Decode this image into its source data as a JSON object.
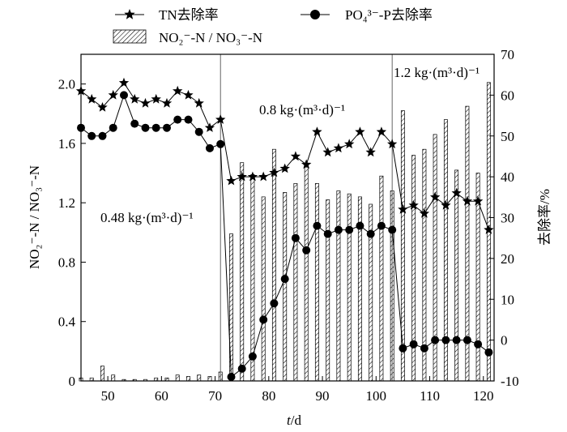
{
  "chart_data": {
    "type": "bar",
    "combo": "bar + line (dual y-axis)",
    "xlabel_italic": "t",
    "xlabel_rest": "/d",
    "ylabel_left": "NO₂⁻-N / NO₃⁻-N",
    "ylabel_right": "去除率/%",
    "xlim": [
      45,
      122
    ],
    "ylim_left": [
      0,
      2.2
    ],
    "ylim_right": [
      -10,
      70
    ],
    "x_ticks": [
      50,
      60,
      70,
      80,
      90,
      100,
      110,
      120
    ],
    "y_left_ticks": [
      "0",
      "0.4",
      "0.8",
      "1.2",
      "1.6",
      "2.0"
    ],
    "y_right_ticks": [
      "-10",
      "0",
      "10",
      "20",
      "30",
      "40",
      "50",
      "60",
      "70"
    ],
    "grid": false,
    "legend_position": "top",
    "legend": {
      "tn_label": "TN去除率",
      "po4_label": "PO₄³⁻-P去除率",
      "bar_label": "NO₂⁻-N / NO₃⁻-N"
    },
    "phase_lines_x": [
      71,
      103
    ],
    "annotations": {
      "phase1": "0.48 kg·(m³·d)⁻¹",
      "phase2": "0.8 kg·(m³·d)⁻¹",
      "phase3": "1.2 kg·(m³·d)⁻¹"
    },
    "bars": {
      "name": "NO₂⁻-N / NO₃⁻-N",
      "axis": "left",
      "x": [
        45,
        47,
        49,
        51,
        53,
        55,
        57,
        59,
        61,
        63,
        65,
        67,
        69,
        71,
        73,
        75,
        77,
        79,
        81,
        83,
        85,
        87,
        89,
        91,
        93,
        95,
        97,
        99,
        101,
        103,
        105,
        107,
        109,
        111,
        113,
        115,
        117,
        119,
        121
      ],
      "values": [
        0.02,
        0.02,
        0.1,
        0.04,
        0.01,
        0.01,
        0.01,
        0.02,
        0.02,
        0.04,
        0.03,
        0.04,
        0.03,
        0.06,
        0.99,
        1.47,
        1.39,
        1.24,
        1.56,
        1.27,
        1.33,
        1.44,
        1.33,
        1.22,
        1.28,
        1.26,
        1.24,
        1.19,
        1.38,
        1.28,
        1.82,
        1.52,
        1.56,
        1.66,
        1.76,
        1.42,
        1.85,
        1.4,
        2.01
      ]
    },
    "series": [
      {
        "name": "TN去除率",
        "axis": "right",
        "marker": "star",
        "x": [
          45,
          47,
          49,
          51,
          53,
          55,
          57,
          59,
          61,
          63,
          65,
          67,
          69,
          71,
          73,
          75,
          77,
          79,
          81,
          83,
          85,
          87,
          89,
          91,
          93,
          95,
          97,
          99,
          101,
          103,
          105,
          107,
          109,
          111,
          113,
          115,
          117,
          119,
          121
        ],
        "values": [
          61,
          59,
          57,
          60,
          63,
          59,
          58,
          59,
          58,
          61,
          60,
          58,
          52,
          54,
          39,
          40,
          40,
          40,
          41,
          42,
          45,
          43,
          51,
          46,
          47,
          48,
          51,
          46,
          51,
          48,
          32,
          33,
          31,
          35,
          33,
          36,
          34,
          34,
          27
        ]
      },
      {
        "name": "PO₄³⁻-P去除率",
        "axis": "right",
        "marker": "circle",
        "x": [
          45,
          47,
          49,
          51,
          53,
          55,
          57,
          59,
          61,
          63,
          65,
          67,
          69,
          71,
          73,
          75,
          77,
          79,
          81,
          83,
          85,
          87,
          89,
          91,
          93,
          95,
          97,
          99,
          101,
          103,
          105,
          107,
          109,
          111,
          113,
          115,
          117,
          119,
          121
        ],
        "values": [
          52,
          50,
          50,
          52,
          60,
          53,
          52,
          52,
          52,
          54,
          54,
          51,
          47,
          48,
          -9,
          -7,
          -4,
          5,
          9,
          15,
          25,
          22,
          28,
          26,
          27,
          27,
          28,
          26,
          28,
          27,
          -2,
          -1,
          -2,
          0,
          0,
          0,
          0,
          -1,
          -3
        ]
      }
    ]
  }
}
